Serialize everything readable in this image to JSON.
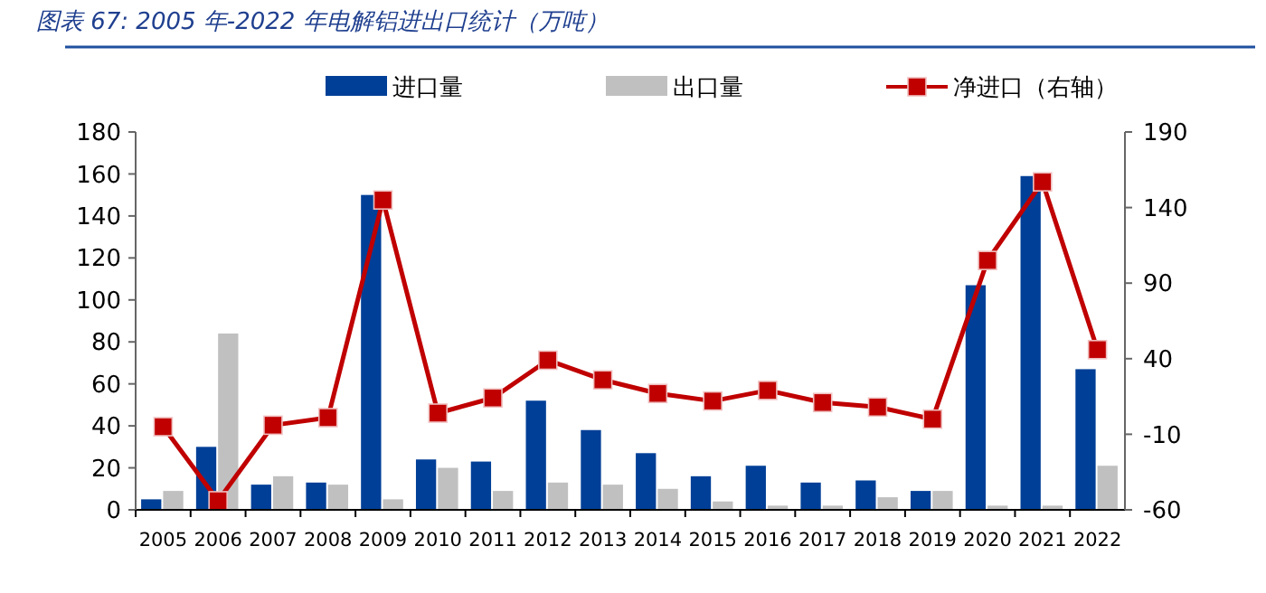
{
  "chart_data": {
    "type": "bar",
    "title": "图表 67:  2005 年-2022 年电解铝进出口统计（万吨）",
    "categories": [
      "2005",
      "2006",
      "2007",
      "2008",
      "2009",
      "2010",
      "2011",
      "2012",
      "2013",
      "2014",
      "2015",
      "2016",
      "2017",
      "2018",
      "2019",
      "2020",
      "2021",
      "2022"
    ],
    "series": [
      {
        "name": "进口量",
        "color": "#003f97",
        "values": [
          5,
          30,
          12,
          13,
          150,
          24,
          23,
          52,
          38,
          27,
          16,
          21,
          13,
          14,
          9,
          107,
          159,
          67
        ]
      },
      {
        "name": "出口量",
        "color": "#c0c0c0",
        "values": [
          9,
          84,
          16,
          12,
          5,
          20,
          9,
          13,
          12,
          10,
          4,
          2,
          2,
          6,
          9,
          2,
          2,
          21
        ]
      },
      {
        "name": "净进口（右轴）",
        "type": "line",
        "axis": "y2",
        "color": "#c00000",
        "marker": "square",
        "values": [
          -5,
          -54,
          -4,
          1,
          145,
          4,
          14,
          39,
          26,
          17,
          12,
          19,
          11,
          8,
          0,
          105,
          157,
          46
        ]
      }
    ],
    "ylim": [
      0,
      180
    ],
    "yticks": [
      0,
      20,
      40,
      60,
      80,
      100,
      120,
      140,
      160,
      180
    ],
    "y2lim": [
      -60,
      190
    ],
    "y2ticks": [
      -60,
      -10,
      40,
      90,
      140,
      190
    ],
    "legend": "top",
    "grid": false
  }
}
